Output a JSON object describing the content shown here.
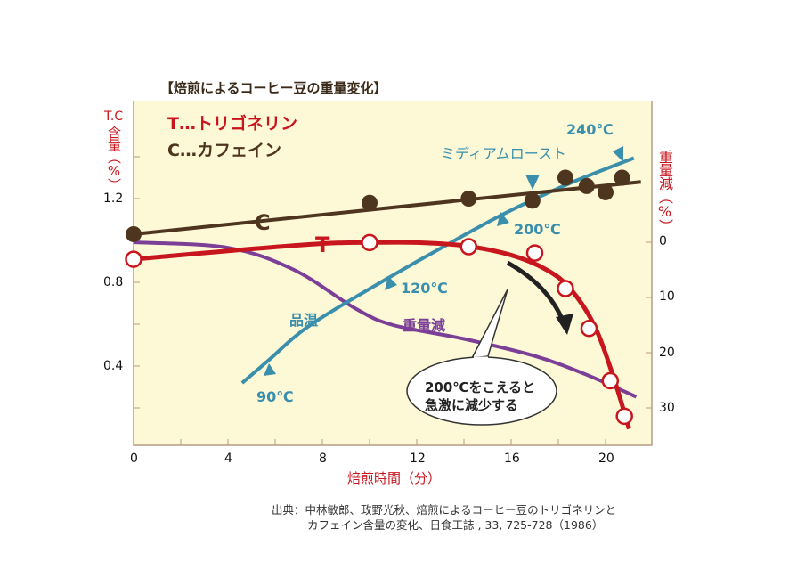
{
  "chart_data": {
    "type": "line",
    "title": "【焙煎によるコーヒー豆の重量変化】",
    "xlabel": "焙煎時間（分）",
    "ylabel_left": "T.C含量（%）",
    "ylabel_left_parts": [
      "T.C",
      "含量（%）"
    ],
    "ylabel_right": "重量減（%）",
    "xlim": [
      0,
      22
    ],
    "ylim_left": [
      0.02,
      1.6
    ],
    "ylim_right": [
      0,
      37
    ],
    "x_ticks": [
      "0",
      "4",
      "8",
      "12",
      "16",
      "20"
    ],
    "y_left_ticks": [
      "1.2",
      "0.8",
      "0.4"
    ],
    "y_right_ticks": [
      "0",
      "10",
      "20",
      "30"
    ],
    "legend": [
      "T…トリゴネリン",
      "C…カフェイン"
    ],
    "series": [
      {
        "name": "C (カフェイン)",
        "marker_label": "C",
        "axis": "left",
        "color": "#4e3520",
        "line": [
          [
            0,
            1.03
          ],
          [
            21.5,
            1.28
          ]
        ],
        "points": [
          [
            0,
            1.03
          ],
          [
            10,
            1.18
          ],
          [
            14.2,
            1.2
          ],
          [
            16.9,
            1.19
          ],
          [
            18.3,
            1.3
          ],
          [
            19.2,
            1.26
          ],
          [
            20.0,
            1.23
          ],
          [
            20.7,
            1.3
          ]
        ]
      },
      {
        "name": "T (トリゴネリン)",
        "marker_label": "T",
        "axis": "left",
        "color": "#c8161e",
        "line": [
          [
            0,
            0.91
          ],
          [
            4,
            0.95
          ],
          [
            8,
            0.985
          ],
          [
            10,
            0.99
          ],
          [
            12,
            0.99
          ],
          [
            14,
            0.975
          ],
          [
            16,
            0.93
          ],
          [
            17.5,
            0.86
          ],
          [
            18.5,
            0.77
          ],
          [
            19.5,
            0.6
          ],
          [
            20.3,
            0.36
          ],
          [
            21,
            0.1
          ]
        ],
        "points": [
          [
            0,
            0.91
          ],
          [
            10,
            0.99
          ],
          [
            14.2,
            0.97
          ],
          [
            17.0,
            0.94
          ],
          [
            18.3,
            0.77
          ],
          [
            19.3,
            0.58
          ],
          [
            20.2,
            0.33
          ],
          [
            20.8,
            0.16
          ]
        ]
      },
      {
        "name": "重量減",
        "axis": "right",
        "color": "#7b3f98",
        "line": [
          [
            0,
            0
          ],
          [
            4,
            1
          ],
          [
            6.8,
            5
          ],
          [
            9.4,
            12
          ],
          [
            11,
            15
          ],
          [
            14,
            17.5
          ],
          [
            17,
            20.6
          ],
          [
            19.2,
            24
          ],
          [
            21.3,
            28
          ]
        ]
      },
      {
        "name": "品温",
        "axis": "none",
        "unit": "℃",
        "color": "#3a8fad",
        "line": [
          [
            4.6,
            80
          ],
          [
            5.7,
            90
          ],
          [
            7.5,
            103
          ],
          [
            10.8,
            120
          ],
          [
            13.2,
            160
          ],
          [
            15.7,
            200
          ],
          [
            18.5,
            225
          ],
          [
            21.2,
            245
          ]
        ]
      }
    ],
    "annotations": {
      "temp_90": "90℃",
      "temp_120": "120℃",
      "temp_200": "200℃",
      "temp_240": "240℃",
      "medium_roast": "ミディアムロースト",
      "callout_line1": "200℃をこえると",
      "callout_line2": "急激に減少する"
    },
    "source_line1": "出典：中林敏郎、政野光秋、焙煎によるコーヒー豆のトリゴネリンと",
    "source_line2": "カフェイン含量の変化、日食工誌 , 33, 725-728（1986）"
  }
}
